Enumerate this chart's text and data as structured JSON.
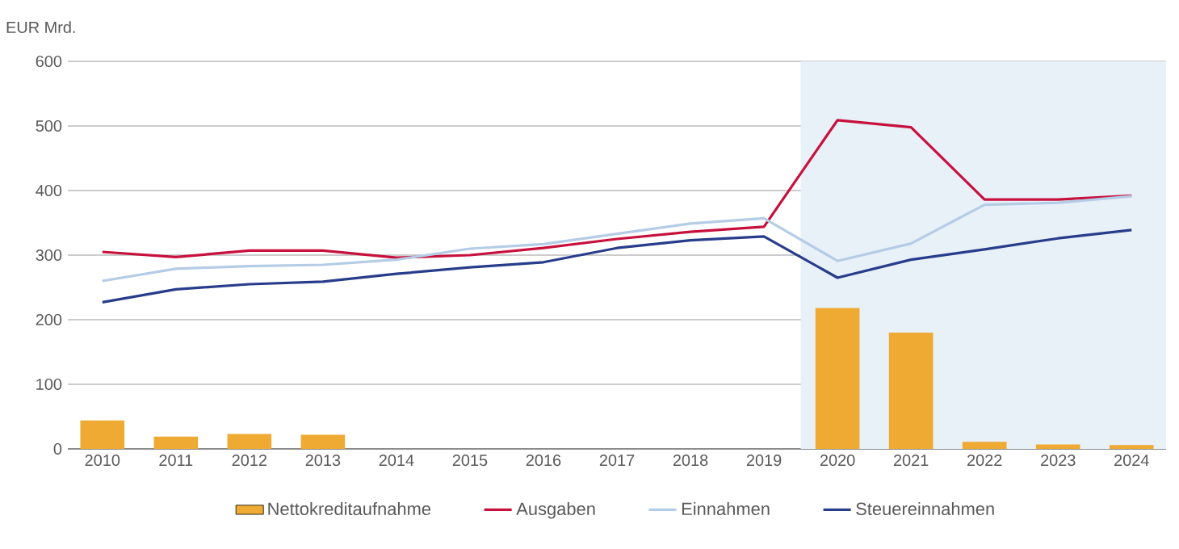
{
  "chart_data": {
    "type": "line",
    "ylabel": "EUR Mrd.",
    "categories": [
      "2010",
      "2011",
      "2012",
      "2013",
      "2014",
      "2015",
      "2016",
      "2017",
      "2018",
      "2019",
      "2020",
      "2021",
      "2022",
      "2023",
      "2024"
    ],
    "series": [
      {
        "name": "Nettokreditaufnahme",
        "type": "bar",
        "color": "#eeaa33",
        "values": [
          44,
          19,
          23,
          22,
          0,
          0,
          0,
          0,
          0,
          0,
          218,
          180,
          11,
          7,
          6
        ]
      },
      {
        "name": "Ausgaben",
        "color": "#c8103c",
        "values": [
          305,
          297,
          307,
          307,
          296,
          300,
          311,
          325,
          336,
          344,
          509,
          498,
          386,
          386,
          392
        ]
      },
      {
        "name": "Einnahmen",
        "color": "#b4cce6",
        "values": [
          260,
          279,
          283,
          285,
          293,
          310,
          317,
          333,
          349,
          357,
          291,
          318,
          378,
          381,
          391
        ]
      },
      {
        "name": "Steuereinnahmen",
        "color": "#283c8c",
        "values": [
          227,
          247,
          255,
          259,
          271,
          281,
          289,
          311,
          323,
          329,
          265,
          293,
          309,
          326,
          339
        ]
      }
    ],
    "bands": [
      {
        "axis": "x",
        "from": "2020",
        "to": "2024",
        "color": "#e8f0f8"
      }
    ],
    "ylim": [
      0,
      600
    ],
    "yticks": [
      0,
      100,
      200,
      300,
      400,
      500,
      600
    ],
    "grid": "y",
    "legend": "bottom",
    "marker": "none",
    "line_style": "solid"
  }
}
